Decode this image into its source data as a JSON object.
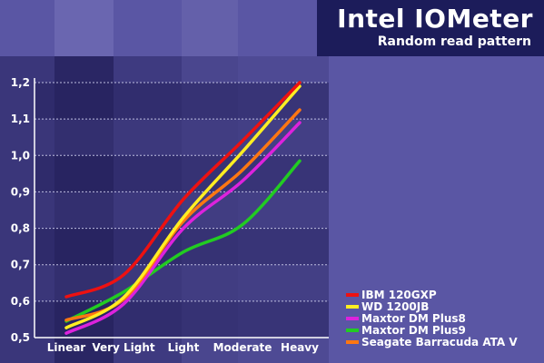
{
  "header": {
    "title": "Intel IOMeter",
    "subtitle": "Random read pattern"
  },
  "colors": {
    "background": "#5a56a4",
    "title_box": "#1c1c5a",
    "plot_dark": "#27235f",
    "plot_mid": "#3a3679",
    "grid": "#bdbde0"
  },
  "chart_data": {
    "type": "line",
    "title": "Intel IOMeter",
    "subtitle": "Random read pattern",
    "xlabel": "",
    "ylabel": "",
    "categories": [
      "Linear",
      "Very Light",
      "Light",
      "Moderate",
      "Heavy"
    ],
    "ylim": [
      0.5,
      1.2
    ],
    "yticks": [
      "0,5",
      "0,6",
      "0,7",
      "0,8",
      "0,9",
      "1,0",
      "1,1",
      "1,2"
    ],
    "grid": true,
    "legend_position": "bottom-right",
    "series": [
      {
        "name": "IBM 120GXP",
        "color": "#ee1111",
        "values": [
          0.612,
          0.672,
          0.88,
          1.04,
          1.2
        ]
      },
      {
        "name": "WD 1200JB",
        "color": "#ffee22",
        "values": [
          0.527,
          0.61,
          0.83,
          1.01,
          1.19
        ]
      },
      {
        "name": "Maxtor DM Plus8",
        "color": "#dd22dd",
        "values": [
          0.512,
          0.592,
          0.8,
          0.93,
          1.09
        ]
      },
      {
        "name": "Maxtor DM Plus9",
        "color": "#22cc22",
        "values": [
          0.545,
          0.625,
          0.735,
          0.81,
          0.985
        ]
      },
      {
        "name": "Seagate Barracuda ATA V",
        "color": "#ff7711",
        "values": [
          0.548,
          0.605,
          0.82,
          0.96,
          1.125
        ]
      }
    ]
  }
}
